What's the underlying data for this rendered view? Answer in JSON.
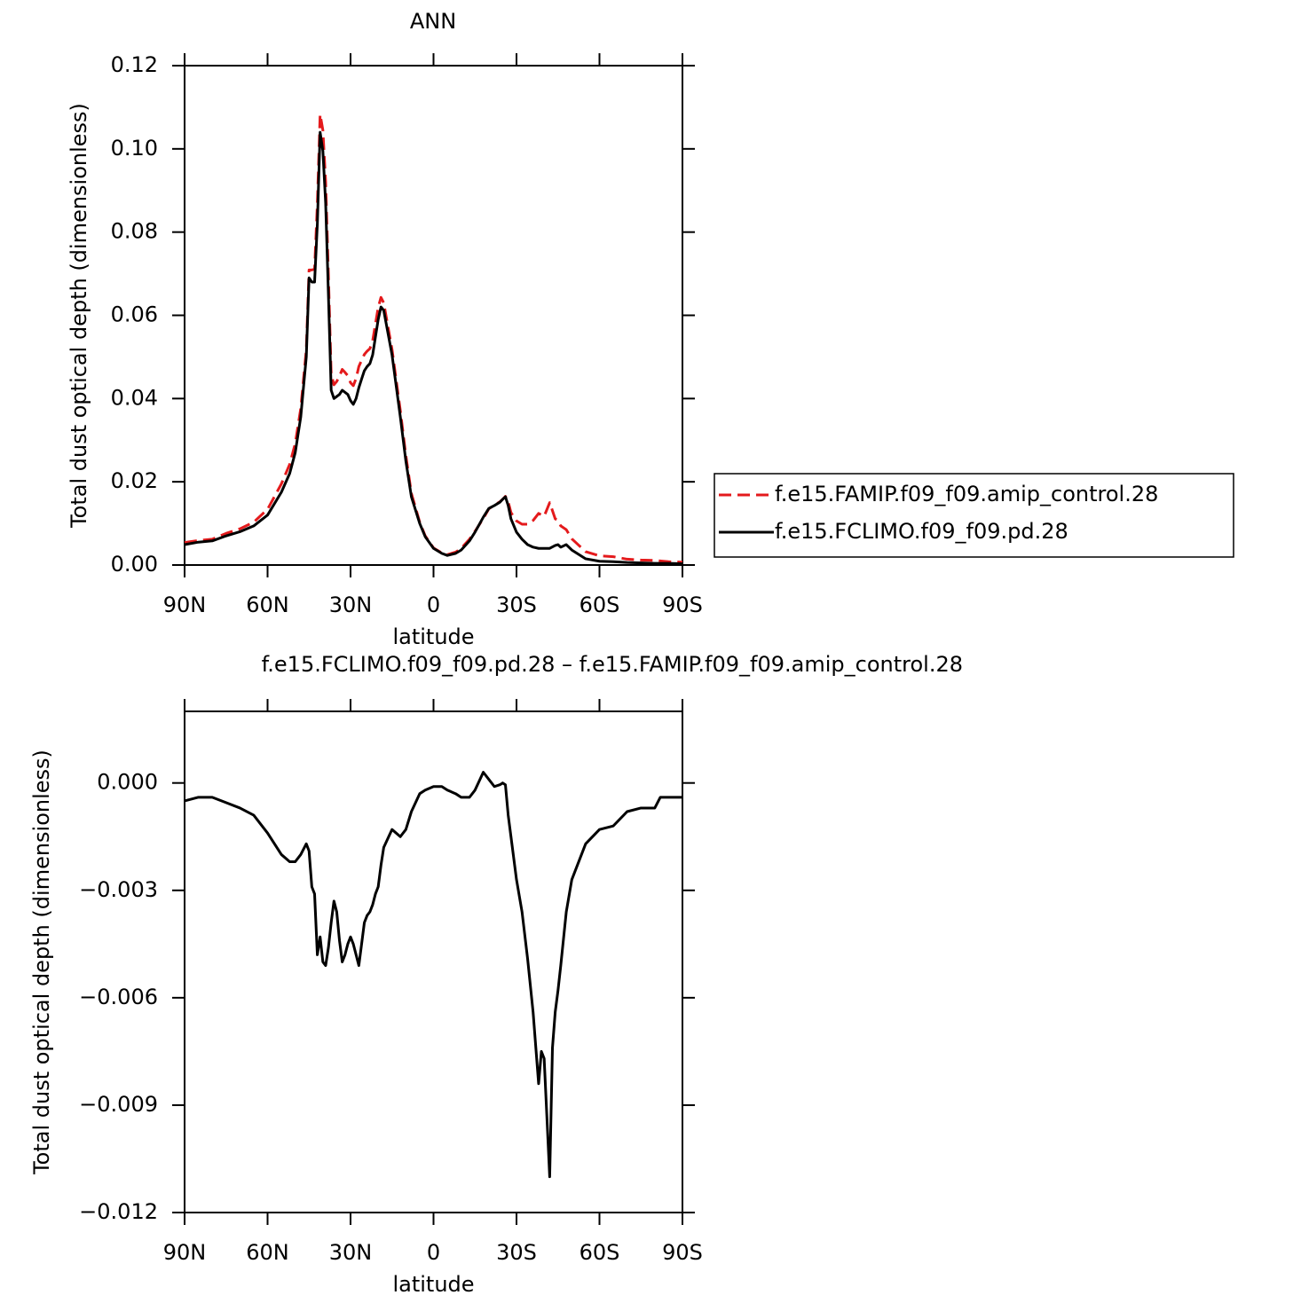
{
  "chart_data": [
    {
      "type": "line",
      "title": "ANN",
      "xlabel": "latitude",
      "ylabel": "Total dust optical depth (dimensionless)",
      "xlim": [
        90,
        -90
      ],
      "xticks": [
        {
          "value": 90,
          "label": "90N"
        },
        {
          "value": 60,
          "label": "60N"
        },
        {
          "value": 30,
          "label": "30N"
        },
        0,
        {
          "value": -30,
          "label": "30S"
        },
        {
          "value": -60,
          "label": "60S"
        },
        {
          "value": -90,
          "label": "90S"
        }
      ],
      "ylim": [
        0,
        0.12
      ],
      "yticks": [
        {
          "value": 0,
          "label": "0.00"
        },
        {
          "value": 0.02,
          "label": "0.02"
        },
        {
          "value": 0.04,
          "label": "0.04"
        },
        {
          "value": 0.06,
          "label": "0.06"
        },
        {
          "value": 0.08,
          "label": "0.08"
        },
        {
          "value": 0.1,
          "label": "0.10"
        },
        {
          "value": 0.12,
          "label": "0.12"
        }
      ],
      "x": [
        90,
        85,
        80,
        75,
        70,
        65,
        60,
        55,
        52,
        50,
        48,
        46,
        45,
        44,
        43,
        42,
        41,
        40,
        39,
        38,
        37,
        36,
        35,
        34,
        33,
        32,
        31,
        30,
        29,
        28,
        27,
        26,
        25,
        24,
        23,
        22,
        21,
        20,
        19,
        18,
        15,
        12,
        10,
        8,
        5,
        3,
        0,
        -3,
        -5,
        -8,
        -10,
        -13,
        -15,
        -18,
        -20,
        -22,
        -24,
        -25,
        -26,
        -27,
        -28,
        -30,
        -32,
        -34,
        -36,
        -38,
        -40,
        -42,
        -44,
        -45,
        -46,
        -48,
        -50,
        -55,
        -60,
        -65,
        -70,
        -75,
        -80,
        -85,
        -90
      ],
      "series": [
        {
          "name": "f.e15.FAMIP.f09_f09.amip_control.28",
          "color": "#e41a1c",
          "dash": "dashed",
          "values": [
            0.0054,
            0.0059,
            0.0062,
            0.0076,
            0.0087,
            0.0103,
            0.0134,
            0.0195,
            0.0242,
            0.0292,
            0.0376,
            0.0517,
            0.0709,
            0.0709,
            0.0711,
            0.0868,
            0.1083,
            0.1045,
            0.0921,
            0.0696,
            0.0459,
            0.0433,
            0.0441,
            0.0454,
            0.047,
            0.0463,
            0.0455,
            0.0438,
            0.0431,
            0.0448,
            0.0477,
            0.0492,
            0.0506,
            0.0514,
            0.052,
            0.0539,
            0.0579,
            0.0619,
            0.0643,
            0.063,
            0.0518,
            0.0371,
            0.0263,
            0.0172,
            0.0103,
            0.007,
            0.0041,
            0.0029,
            0.0025,
            0.0031,
            0.004,
            0.0062,
            0.0081,
            0.0112,
            0.0135,
            0.0144,
            0.0152,
            0.0158,
            0.0165,
            0.0152,
            0.0126,
            0.0106,
            0.0098,
            0.0098,
            0.0107,
            0.0124,
            0.0117,
            0.015,
            0.0111,
            0.0107,
            0.0094,
            0.0085,
            0.0063,
            0.0032,
            0.0022,
            0.002,
            0.0014,
            0.0012,
            0.0011,
            0.0008,
            0.0007
          ]
        },
        {
          "name": "f.e15.FCLIMO.f09_f09.pd.28",
          "color": "#000000",
          "dash": "solid",
          "values": [
            0.0049,
            0.0055,
            0.0058,
            0.007,
            0.008,
            0.0094,
            0.012,
            0.0175,
            0.022,
            0.027,
            0.0356,
            0.05,
            0.069,
            0.068,
            0.068,
            0.082,
            0.104,
            0.0995,
            0.087,
            0.065,
            0.042,
            0.04,
            0.0405,
            0.041,
            0.042,
            0.0415,
            0.041,
            0.0395,
            0.0386,
            0.04,
            0.0426,
            0.0447,
            0.0467,
            0.0477,
            0.0484,
            0.0505,
            0.0548,
            0.059,
            0.062,
            0.0612,
            0.0505,
            0.0356,
            0.025,
            0.0164,
            0.01,
            0.0068,
            0.004,
            0.0028,
            0.0023,
            0.0028,
            0.0036,
            0.0058,
            0.0079,
            0.0115,
            0.0136,
            0.0143,
            0.0151,
            0.0158,
            0.0164,
            0.0143,
            0.0111,
            0.0079,
            0.0062,
            0.0049,
            0.0043,
            0.004,
            0.004,
            0.004,
            0.0047,
            0.0049,
            0.0043,
            0.0049,
            0.0036,
            0.0015,
            0.0009,
            0.0008,
            0.0006,
            0.0005,
            0.0004,
            0.0004,
            0.0003
          ]
        }
      ]
    },
    {
      "type": "line",
      "title": "f.e15.FCLIMO.f09_f09.pd.28 – f.e15.FAMIP.f09_f09.amip_control.28",
      "xlabel": "latitude",
      "ylabel": "Total dust optical depth (dimensionless)",
      "xlim": [
        90,
        -90
      ],
      "xticks": [
        {
          "value": 90,
          "label": "90N"
        },
        {
          "value": 60,
          "label": "60N"
        },
        {
          "value": 30,
          "label": "30N"
        },
        0,
        {
          "value": -30,
          "label": "30S"
        },
        {
          "value": -60,
          "label": "60S"
        },
        {
          "value": -90,
          "label": "90S"
        }
      ],
      "ylim": [
        -0.012,
        0.002
      ],
      "yticks": [
        {
          "value": -0.012,
          "label": "−0.012"
        },
        {
          "value": -0.009,
          "label": "−0.009"
        },
        {
          "value": -0.006,
          "label": "−0.006"
        },
        {
          "value": -0.003,
          "label": "−0.003"
        },
        {
          "value": 0,
          "label": "0.000"
        }
      ],
      "x": [
        90,
        85,
        80,
        75,
        70,
        65,
        60,
        55,
        52,
        50,
        48,
        46,
        45,
        44,
        43,
        42,
        41,
        40,
        39,
        38,
        37,
        36,
        35,
        34,
        33,
        32,
        31,
        30,
        29,
        28,
        27,
        26,
        25,
        24,
        23,
        22,
        21,
        20,
        19,
        18,
        15,
        12,
        10,
        8,
        5,
        3,
        0,
        -3,
        -5,
        -8,
        -10,
        -13,
        -15,
        -18,
        -20,
        -22,
        -24,
        -25,
        -26,
        -27,
        -28,
        -30,
        -32,
        -34,
        -36,
        -38,
        -39,
        -40,
        -42,
        -43,
        -44,
        -45,
        -46,
        -48,
        -50,
        -55,
        -60,
        -65,
        -70,
        -75,
        -80,
        -82,
        -85,
        -90
      ],
      "color": "#000000",
      "values": [
        -0.0005,
        -0.0004,
        -0.0004,
        -0.00055,
        -0.0007,
        -0.0009,
        -0.0014,
        -0.002,
        -0.0022,
        -0.0022,
        -0.002,
        -0.0017,
        -0.0019,
        -0.0029,
        -0.0031,
        -0.0048,
        -0.0043,
        -0.005,
        -0.0051,
        -0.0046,
        -0.0039,
        -0.0033,
        -0.0036,
        -0.0044,
        -0.005,
        -0.0048,
        -0.0045,
        -0.0043,
        -0.0045,
        -0.0048,
        -0.0051,
        -0.0045,
        -0.0039,
        -0.0037,
        -0.0036,
        -0.0034,
        -0.0031,
        -0.0029,
        -0.0023,
        -0.0018,
        -0.0013,
        -0.0015,
        -0.0013,
        -0.0008,
        -0.0003,
        -0.0002,
        -0.0001,
        -0.0001,
        -0.0002,
        -0.0003,
        -0.0004,
        -0.0004,
        -0.0002,
        0.0003,
        0.0001,
        -0.0001,
        -5e-05,
        0,
        -5e-05,
        -0.0009,
        -0.0015,
        -0.0027,
        -0.0036,
        -0.0049,
        -0.0064,
        -0.0084,
        -0.0075,
        -0.0077,
        -0.011,
        -0.0074,
        -0.0064,
        -0.0058,
        -0.0051,
        -0.0036,
        -0.0027,
        -0.0017,
        -0.0013,
        -0.0012,
        -0.0008,
        -0.0007,
        -0.0007,
        -0.0004,
        -0.0004,
        -0.0004
      ]
    }
  ]
}
